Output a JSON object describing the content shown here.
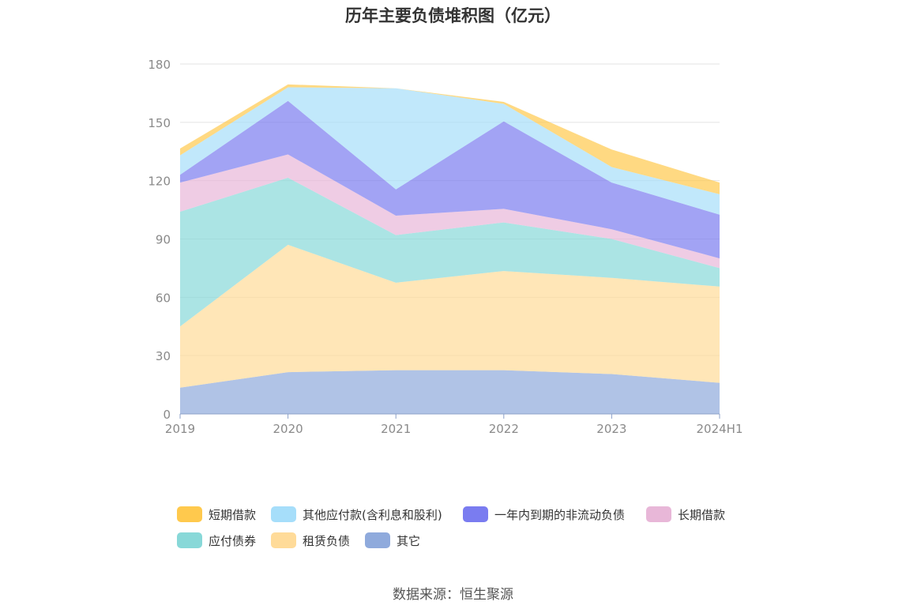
{
  "title": "历年主要负债堆积图（亿元）",
  "source": "数据来源：恒生聚源",
  "chart_data": {
    "type": "area",
    "stacked": true,
    "categories": [
      "2019",
      "2020",
      "2021",
      "2022",
      "2023",
      "2024H1"
    ],
    "ylim": [
      0,
      180
    ],
    "yticks": [
      0,
      30,
      60,
      90,
      120,
      150,
      180
    ],
    "grid": true,
    "legend_position": "bottom",
    "series": [
      {
        "name": "其它",
        "color": "#8faadc",
        "values": [
          13.5,
          21.5,
          22.5,
          22.5,
          20.5,
          16
        ]
      },
      {
        "name": "租赁负债",
        "color": "#ffdb99",
        "values": [
          31.5,
          65.5,
          45,
          51,
          49.5,
          49.5
        ]
      },
      {
        "name": "应付债券",
        "color": "#88d8d8",
        "values": [
          59,
          34.5,
          24.5,
          25,
          20,
          9.5
        ]
      },
      {
        "name": "长期借款",
        "color": "#e8b7d8",
        "values": [
          15,
          12,
          10,
          7,
          5,
          5
        ]
      },
      {
        "name": "一年内到期的非流动负债",
        "color": "#7a7cf0",
        "values": [
          4,
          27.5,
          13.5,
          45,
          24,
          22.5
        ]
      },
      {
        "name": "其他应付款(含利息和股利)",
        "color": "#a6defa",
        "values": [
          10,
          7,
          52,
          9,
          8,
          10.5
        ]
      },
      {
        "name": "短期借款",
        "color": "#ffc94d",
        "values": [
          3.5,
          1.5,
          0,
          1,
          9,
          6
        ]
      }
    ]
  },
  "legend": [
    {
      "label": "短期借款",
      "color": "#ffc94d"
    },
    {
      "label": "其他应付款(含利息和股利)",
      "color": "#a6defa"
    },
    {
      "label": "一年内到期的非流动负债",
      "color": "#7a7cf0"
    },
    {
      "label": "长期借款",
      "color": "#e8b7d8"
    },
    {
      "label": "应付债券",
      "color": "#88d8d8"
    },
    {
      "label": "租赁负债",
      "color": "#ffdb99"
    },
    {
      "label": "其它",
      "color": "#8faadc"
    }
  ]
}
